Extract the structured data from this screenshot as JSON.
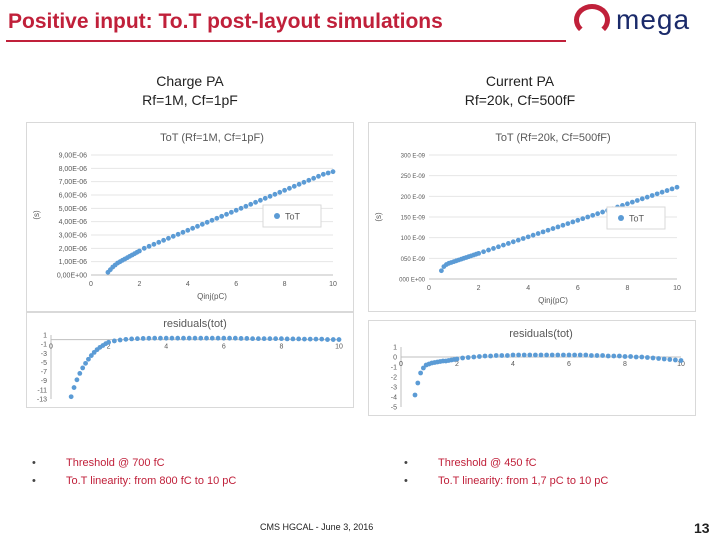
{
  "header": {
    "title": "Positive input: To.T post-layout simulations",
    "logo_text": "mega"
  },
  "left": {
    "heading_line1": "Charge PA",
    "heading_line2": "Rf=1M, Cf=1pF",
    "bullets": [
      "Threshold @ 700 fC",
      "To.T linearity: from 800 fC to 10 pC"
    ]
  },
  "right": {
    "heading_line1": "Current PA",
    "heading_line2": "Rf=20k, Cf=500fF",
    "bullets": [
      "Threshold @ 450 fC",
      "To.T linearity: from 1,7 pC to 10 pC"
    ]
  },
  "footer": "CMS HGCAL -  June 3, 2016",
  "page_number": "13",
  "colors": {
    "accent": "#c0203a",
    "marker": "#5b9bd5"
  },
  "chart_data": [
    {
      "id": "tot_charge",
      "type": "scatter",
      "title": "ToT (Rf=1M, Cf=1pF)",
      "xlabel": "Qinj(pC)",
      "ylabel": "(s)",
      "legend": "ToT",
      "legend_position": "center-right",
      "xlim": [
        0,
        10
      ],
      "ylim": [
        0,
        9e-06
      ],
      "xticks": [
        "0",
        "2",
        "4",
        "6",
        "8",
        "10"
      ],
      "yticks": [
        "0,00E+00",
        "1,00E-06",
        "2,00E-06",
        "3,00E-06",
        "4,00E-06",
        "5,00E-06",
        "6,00E-06",
        "7,00E-06",
        "8,00E-06",
        "9,00E-06"
      ],
      "x": [
        0.7,
        0.8,
        0.9,
        1.0,
        1.1,
        1.2,
        1.3,
        1.4,
        1.5,
        1.6,
        1.7,
        1.8,
        1.9,
        2.0,
        2.2,
        2.4,
        2.6,
        2.8,
        3.0,
        3.2,
        3.4,
        3.6,
        3.8,
        4.0,
        4.2,
        4.4,
        4.6,
        4.8,
        5.0,
        5.2,
        5.4,
        5.6,
        5.8,
        6.0,
        6.2,
        6.4,
        6.6,
        6.8,
        7.0,
        7.2,
        7.4,
        7.6,
        7.8,
        8.0,
        8.2,
        8.4,
        8.6,
        8.8,
        9.0,
        9.2,
        9.4,
        9.6,
        9.8,
        10.0
      ],
      "y": [
        2e-07,
        4e-07,
        6e-07,
        7.5e-07,
        9e-07,
        1e-06,
        1.1e-06,
        1.2e-06,
        1.3e-06,
        1.4e-06,
        1.5e-06,
        1.6e-06,
        1.7e-06,
        1.8e-06,
        2e-06,
        2.15e-06,
        2.3e-06,
        2.45e-06,
        2.6e-06,
        2.75e-06,
        2.9e-06,
        3.05e-06,
        3.2e-06,
        3.35e-06,
        3.5e-06,
        3.65e-06,
        3.8e-06,
        3.95e-06,
        4.1e-06,
        4.25e-06,
        4.4e-06,
        4.55e-06,
        4.7e-06,
        4.85e-06,
        5e-06,
        5.15e-06,
        5.3e-06,
        5.45e-06,
        5.6e-06,
        5.75e-06,
        5.9e-06,
        6.05e-06,
        6.2e-06,
        6.35e-06,
        6.5e-06,
        6.65e-06,
        6.8e-06,
        6.95e-06,
        7.1e-06,
        7.25e-06,
        7.4e-06,
        7.55e-06,
        7.65e-06,
        7.75e-06
      ]
    },
    {
      "id": "resid_charge",
      "type": "scatter",
      "title": "residuals(tot)",
      "xlim": [
        0,
        10
      ],
      "ylim": [
        -13,
        1
      ],
      "xticks": [
        "0",
        "2",
        "4",
        "6",
        "8",
        "10"
      ],
      "yticks": [
        "1",
        "-1",
        "-3",
        "-5",
        "-7",
        "-9",
        "-11",
        "-13"
      ],
      "x": [
        0.7,
        0.8,
        0.9,
        1.0,
        1.1,
        1.2,
        1.3,
        1.4,
        1.5,
        1.6,
        1.7,
        1.8,
        1.9,
        2.0,
        2.2,
        2.4,
        2.6,
        2.8,
        3.0,
        3.2,
        3.4,
        3.6,
        3.8,
        4.0,
        4.2,
        4.4,
        4.6,
        4.8,
        5.0,
        5.2,
        5.4,
        5.6,
        5.8,
        6.0,
        6.2,
        6.4,
        6.6,
        6.8,
        7.0,
        7.2,
        7.4,
        7.6,
        7.8,
        8.0,
        8.2,
        8.4,
        8.6,
        8.8,
        9.0,
        9.2,
        9.4,
        9.6,
        9.8,
        10.0
      ],
      "y": [
        -12.5,
        -10.5,
        -8.8,
        -7.4,
        -6.2,
        -5.2,
        -4.3,
        -3.5,
        -2.8,
        -2.2,
        -1.7,
        -1.3,
        -0.9,
        -0.6,
        -0.3,
        -0.1,
        0.05,
        0.15,
        0.2,
        0.25,
        0.28,
        0.3,
        0.3,
        0.3,
        0.3,
        0.3,
        0.3,
        0.3,
        0.3,
        0.3,
        0.3,
        0.3,
        0.3,
        0.3,
        0.3,
        0.3,
        0.25,
        0.25,
        0.2,
        0.2,
        0.2,
        0.2,
        0.2,
        0.2,
        0.15,
        0.15,
        0.15,
        0.1,
        0.1,
        0.1,
        0.1,
        0.0,
        0.0,
        0.0
      ]
    },
    {
      "id": "tot_current",
      "type": "scatter",
      "title": "ToT (Rf=20k, Cf=500fF)",
      "xlabel": "Qinj(pC)",
      "ylabel": "(s)",
      "legend": "ToT",
      "legend_position": "center-right",
      "xlim": [
        0,
        10
      ],
      "ylim": [
        0,
        3e-07
      ],
      "xticks": [
        "0",
        "2",
        "4",
        "6",
        "8",
        "10"
      ],
      "yticks": [
        "000 E+00",
        "050 E-09",
        "100 E-09",
        "150 E-09",
        "200 E-09",
        "250 E-09",
        "300 E-09"
      ],
      "x": [
        0.5,
        0.6,
        0.7,
        0.8,
        0.9,
        1.0,
        1.1,
        1.2,
        1.3,
        1.4,
        1.5,
        1.6,
        1.7,
        1.8,
        1.9,
        2.0,
        2.2,
        2.4,
        2.6,
        2.8,
        3.0,
        3.2,
        3.4,
        3.6,
        3.8,
        4.0,
        4.2,
        4.4,
        4.6,
        4.8,
        5.0,
        5.2,
        5.4,
        5.6,
        5.8,
        6.0,
        6.2,
        6.4,
        6.6,
        6.8,
        7.0,
        7.2,
        7.4,
        7.6,
        7.8,
        8.0,
        8.2,
        8.4,
        8.6,
        8.8,
        9.0,
        9.2,
        9.4,
        9.6,
        9.8,
        10.0
      ],
      "y": [
        2e-08,
        3e-08,
        3.5e-08,
        3.8e-08,
        4e-08,
        4.2e-08,
        4.4e-08,
        4.6e-08,
        4.8e-08,
        5e-08,
        5.2e-08,
        5.4e-08,
        5.6e-08,
        5.8e-08,
        6e-08,
        6.2e-08,
        6.6e-08,
        7e-08,
        7.4e-08,
        7.8e-08,
        8.2e-08,
        8.6e-08,
        9e-08,
        9.4e-08,
        9.8e-08,
        1.02e-07,
        1.06e-07,
        1.1e-07,
        1.14e-07,
        1.18e-07,
        1.22e-07,
        1.26e-07,
        1.3e-07,
        1.34e-07,
        1.38e-07,
        1.42e-07,
        1.46e-07,
        1.5e-07,
        1.54e-07,
        1.58e-07,
        1.62e-07,
        1.66e-07,
        1.7e-07,
        1.74e-07,
        1.78e-07,
        1.82e-07,
        1.86e-07,
        1.9e-07,
        1.94e-07,
        1.98e-07,
        2.02e-07,
        2.06e-07,
        2.1e-07,
        2.14e-07,
        2.18e-07,
        2.22e-07
      ]
    },
    {
      "id": "resid_current",
      "type": "scatter",
      "title": "residuals(tot)",
      "xlim": [
        0,
        10
      ],
      "ylim": [
        -5,
        1
      ],
      "xticks": [
        "0",
        "2",
        "4",
        "6",
        "8",
        "10"
      ],
      "yticks": [
        "1",
        "0",
        "-1",
        "-2",
        "-3",
        "-4",
        "-5"
      ],
      "x": [
        0.5,
        0.6,
        0.7,
        0.8,
        0.9,
        1.0,
        1.1,
        1.2,
        1.3,
        1.4,
        1.5,
        1.6,
        1.7,
        1.8,
        1.9,
        2.0,
        2.2,
        2.4,
        2.6,
        2.8,
        3.0,
        3.2,
        3.4,
        3.6,
        3.8,
        4.0,
        4.2,
        4.4,
        4.6,
        4.8,
        5.0,
        5.2,
        5.4,
        5.6,
        5.8,
        6.0,
        6.2,
        6.4,
        6.6,
        6.8,
        7.0,
        7.2,
        7.4,
        7.6,
        7.8,
        8.0,
        8.2,
        8.4,
        8.6,
        8.8,
        9.0,
        9.2,
        9.4,
        9.6,
        9.8,
        10.0
      ],
      "y": [
        -3.8,
        -2.6,
        -1.6,
        -1.1,
        -0.8,
        -0.7,
        -0.6,
        -0.55,
        -0.5,
        -0.45,
        -0.4,
        -0.4,
        -0.35,
        -0.3,
        -0.25,
        -0.2,
        -0.1,
        -0.05,
        0.0,
        0.05,
        0.1,
        0.1,
        0.15,
        0.15,
        0.15,
        0.2,
        0.2,
        0.2,
        0.2,
        0.2,
        0.2,
        0.2,
        0.2,
        0.2,
        0.2,
        0.2,
        0.2,
        0.2,
        0.2,
        0.15,
        0.15,
        0.15,
        0.1,
        0.1,
        0.1,
        0.05,
        0.05,
        0.0,
        0.0,
        -0.05,
        -0.1,
        -0.15,
        -0.2,
        -0.25,
        -0.3,
        -0.35
      ]
    }
  ]
}
